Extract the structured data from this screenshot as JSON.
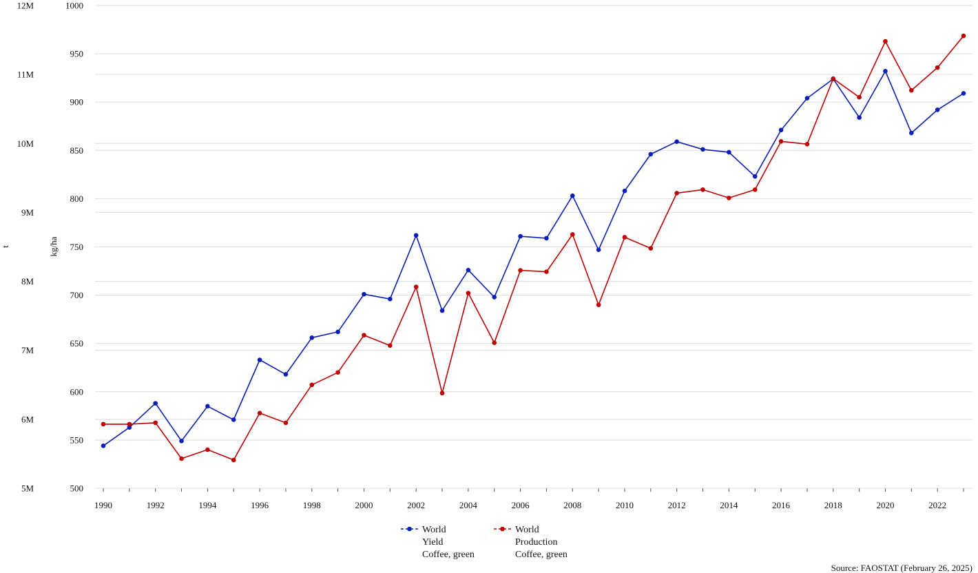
{
  "chart_data": {
    "type": "line",
    "x": [
      1990,
      1991,
      1992,
      1993,
      1994,
      1995,
      1996,
      1997,
      1998,
      1999,
      2000,
      2001,
      2002,
      2003,
      2004,
      2005,
      2006,
      2007,
      2008,
      2009,
      2010,
      2011,
      2012,
      2013,
      2014,
      2015,
      2016,
      2017,
      2018,
      2019,
      2020,
      2021,
      2022,
      2023
    ],
    "x_ticks": [
      "1990",
      "1992",
      "1994",
      "1996",
      "1998",
      "2000",
      "2002",
      "2004",
      "2006",
      "2008",
      "2010",
      "2012",
      "2014",
      "2016",
      "2018",
      "2020",
      "2022"
    ],
    "xlim": [
      1990,
      2023
    ],
    "y_left_ticks": [
      "12M",
      "11M",
      "10M",
      "9M",
      "8M",
      "7M",
      "6M",
      "5M"
    ],
    "y_left_label": "t",
    "y_left_lim": [
      5000000,
      12000000
    ],
    "y_right_ticks": [
      "1000",
      "950",
      "900",
      "850",
      "800",
      "750",
      "700",
      "650",
      "600",
      "550",
      "500"
    ],
    "y_right_label": "kg/ha",
    "y_right_lim": [
      500,
      1000
    ],
    "grid": true,
    "legend_position": "bottom-center",
    "series": [
      {
        "name": "World Yield Coffee, green",
        "legend_lines": [
          "World",
          "Yield",
          "Coffee, green"
        ],
        "color": "#0a1fb8",
        "axis": "kg/ha",
        "values": [
          544,
          563,
          588,
          549,
          585,
          571,
          633,
          618,
          656,
          662,
          701,
          696,
          762,
          684,
          726,
          698,
          761,
          759,
          803,
          747,
          808,
          846,
          859,
          851,
          848,
          823,
          871,
          904,
          924,
          884,
          932,
          868,
          892,
          909
        ]
      },
      {
        "name": "World Production Coffee, green",
        "legend_lines": [
          "World",
          "Production",
          "Coffee, green"
        ],
        "color": "#c00000",
        "axis": "t",
        "values": [
          5930000,
          5930000,
          5950000,
          5430000,
          5560000,
          5410000,
          6090000,
          5950000,
          6500000,
          6680000,
          7220000,
          7070000,
          7920000,
          6380000,
          7830000,
          7110000,
          8160000,
          8140000,
          8680000,
          7660000,
          8640000,
          8480000,
          9280000,
          9330000,
          9210000,
          9330000,
          10030000,
          9990000,
          10940000,
          10670000,
          11480000,
          10770000,
          11100000,
          11560000
        ]
      }
    ]
  },
  "source": "Source: FAOSTAT (February 26, 2025)"
}
